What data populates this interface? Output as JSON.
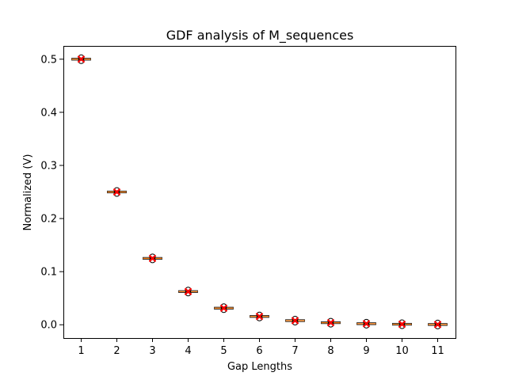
{
  "chart_data": {
    "type": "box",
    "title": "GDF analysis of M_sequences",
    "xlabel": "Gap Lengths",
    "ylabel": "Normalized (V)",
    "categories": [
      "1",
      "2",
      "3",
      "4",
      "5",
      "6",
      "7",
      "8",
      "9",
      "10",
      "11"
    ],
    "values": [
      0.5,
      0.25,
      0.125,
      0.0625,
      0.03125,
      0.015625,
      0.0078,
      0.0039,
      0.002,
      0.001,
      0.0005
    ],
    "ylim": [
      -0.025,
      0.525
    ],
    "yticks": [
      0.0,
      0.1,
      0.2,
      0.3,
      0.4,
      0.5
    ],
    "ytick_labels": [
      "0.0",
      "0.1",
      "0.2",
      "0.3",
      "0.4",
      "0.5"
    ],
    "grid": false,
    "colors": {
      "box_edge": "#000000",
      "median": "#ff7f0e",
      "mean_marker": "#ff0000",
      "outlier_edge": "#000000"
    }
  }
}
